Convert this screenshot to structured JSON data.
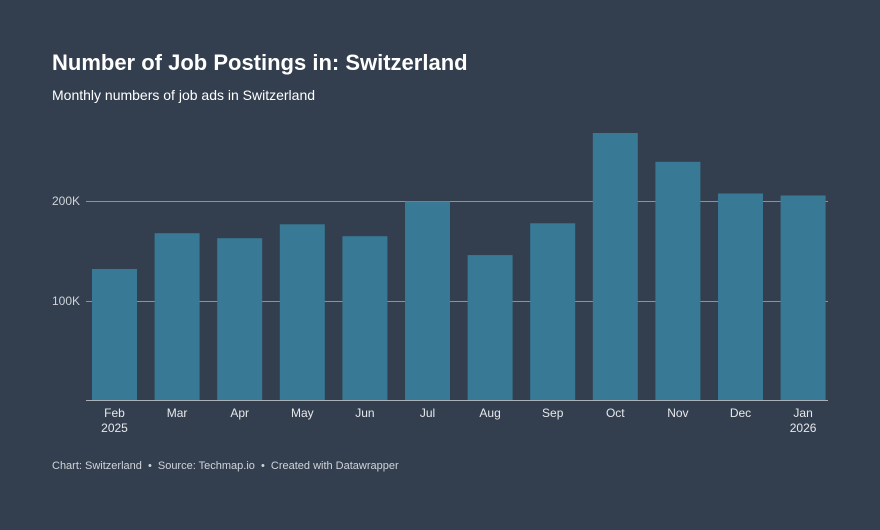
{
  "header": {
    "title": "Number of Job Postings in: Switzerland",
    "subtitle": "Monthly numbers of job ads in Switzerland"
  },
  "footer": {
    "chart": "Chart: Switzerland",
    "source": "Source: Techmap.io",
    "created": "Created with Datawrapper",
    "separator": "•"
  },
  "colors": {
    "background": "#333e4e",
    "bar": "#387a96",
    "grid": "#8a929c",
    "axis": "#a9b0b8"
  },
  "chart_data": {
    "type": "bar",
    "title": "Number of Job Postings in: Switzerland",
    "subtitle": "Monthly numbers of job ads in Switzerland",
    "xlabel": "",
    "ylabel": "",
    "categories": [
      "Feb",
      "Mar",
      "Apr",
      "May",
      "Jun",
      "Jul",
      "Aug",
      "Sep",
      "Oct",
      "Nov",
      "Dec",
      "Jan"
    ],
    "category_sublabels": [
      "2025",
      "",
      "",
      "",
      "",
      "",
      "",
      "",
      "",
      "",
      "",
      "2026"
    ],
    "values": [
      132000,
      168000,
      163000,
      177000,
      165000,
      200000,
      146000,
      178000,
      269000,
      240000,
      208000,
      206000
    ],
    "ylim": [
      0,
      270000
    ],
    "yticks": [
      100000,
      200000
    ],
    "ytick_labels": [
      "100K",
      "200K"
    ],
    "grid": true
  }
}
